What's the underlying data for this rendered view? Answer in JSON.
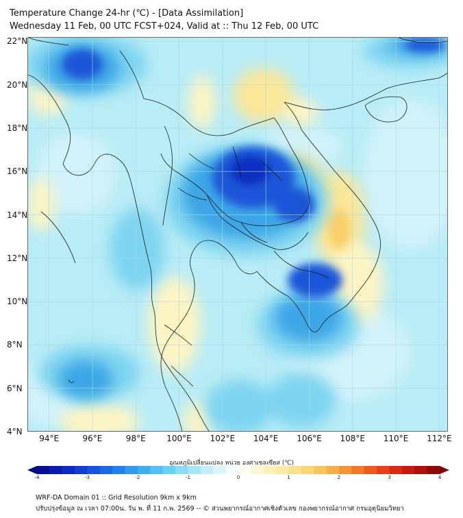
{
  "title": {
    "line1": "Temperature Change 24-hr (℃) - [Data Assimilation]",
    "line2": "Wednesday 11 Feb, 00 UTC FCST+024, Valid at :: Thu 12 Feb, 00 UTC"
  },
  "map": {
    "lat_labels": [
      "22°N",
      "20°N",
      "18°N",
      "16°N",
      "14°N",
      "12°N",
      "10°N",
      "8°N",
      "6°N",
      "4°N"
    ],
    "lon_labels": [
      "94°E",
      "96°E",
      "98°E",
      "100°E",
      "102°E",
      "104°E",
      "106°E",
      "108°E",
      "110°E",
      "112°E"
    ],
    "lat_range": [
      4,
      22.2
    ],
    "lon_range": [
      93,
      112.4
    ],
    "colors": {
      "background": "#b8ecf6",
      "warm_light": "#fdf4c4",
      "warm": "#fbe79a",
      "warm_orange": "#f8cf6a",
      "cool_light": "#d2f2fa",
      "cool": "#7ed4f0",
      "cool_mid": "#3ea6e6",
      "cool_dark": "#1a56d8",
      "cool_deep": "#0d2fc0"
    }
  },
  "colorbar": {
    "title": "อุณหภูมิเปลี่ยนแปลง หน่วย องศาเซลเซียส (℃)",
    "tick_labels": [
      "-4",
      "-3",
      "-2",
      "-1",
      "0",
      "1",
      "2",
      "3",
      "4"
    ],
    "range": [
      -4,
      4
    ],
    "colors": [
      "#050a80",
      "#0b22b8",
      "#1448dc",
      "#1e74e8",
      "#36a6ee",
      "#5ecaf3",
      "#97e2f7",
      "#cdf2fb",
      "#ffffff",
      "#fdf4c4",
      "#fbe79a",
      "#f8cf6a",
      "#f5a53e",
      "#ef6a22",
      "#e43015",
      "#c0120e",
      "#7a0a08"
    ]
  },
  "footer": {
    "line1": "WRF-DA Domain 01 :: Grid Resolution 9km x 9km",
    "line2": "ปรับปรุงข้อมูล ณ เวลา 07:00น. วัน พ. ที่ 11 ก.พ. 2569 -- © ส่วนพยากรณ์อากาศเชิงตัวเลข กองพยากรณ์อากาศ กรมอุตุนิยมวิทยา"
  }
}
